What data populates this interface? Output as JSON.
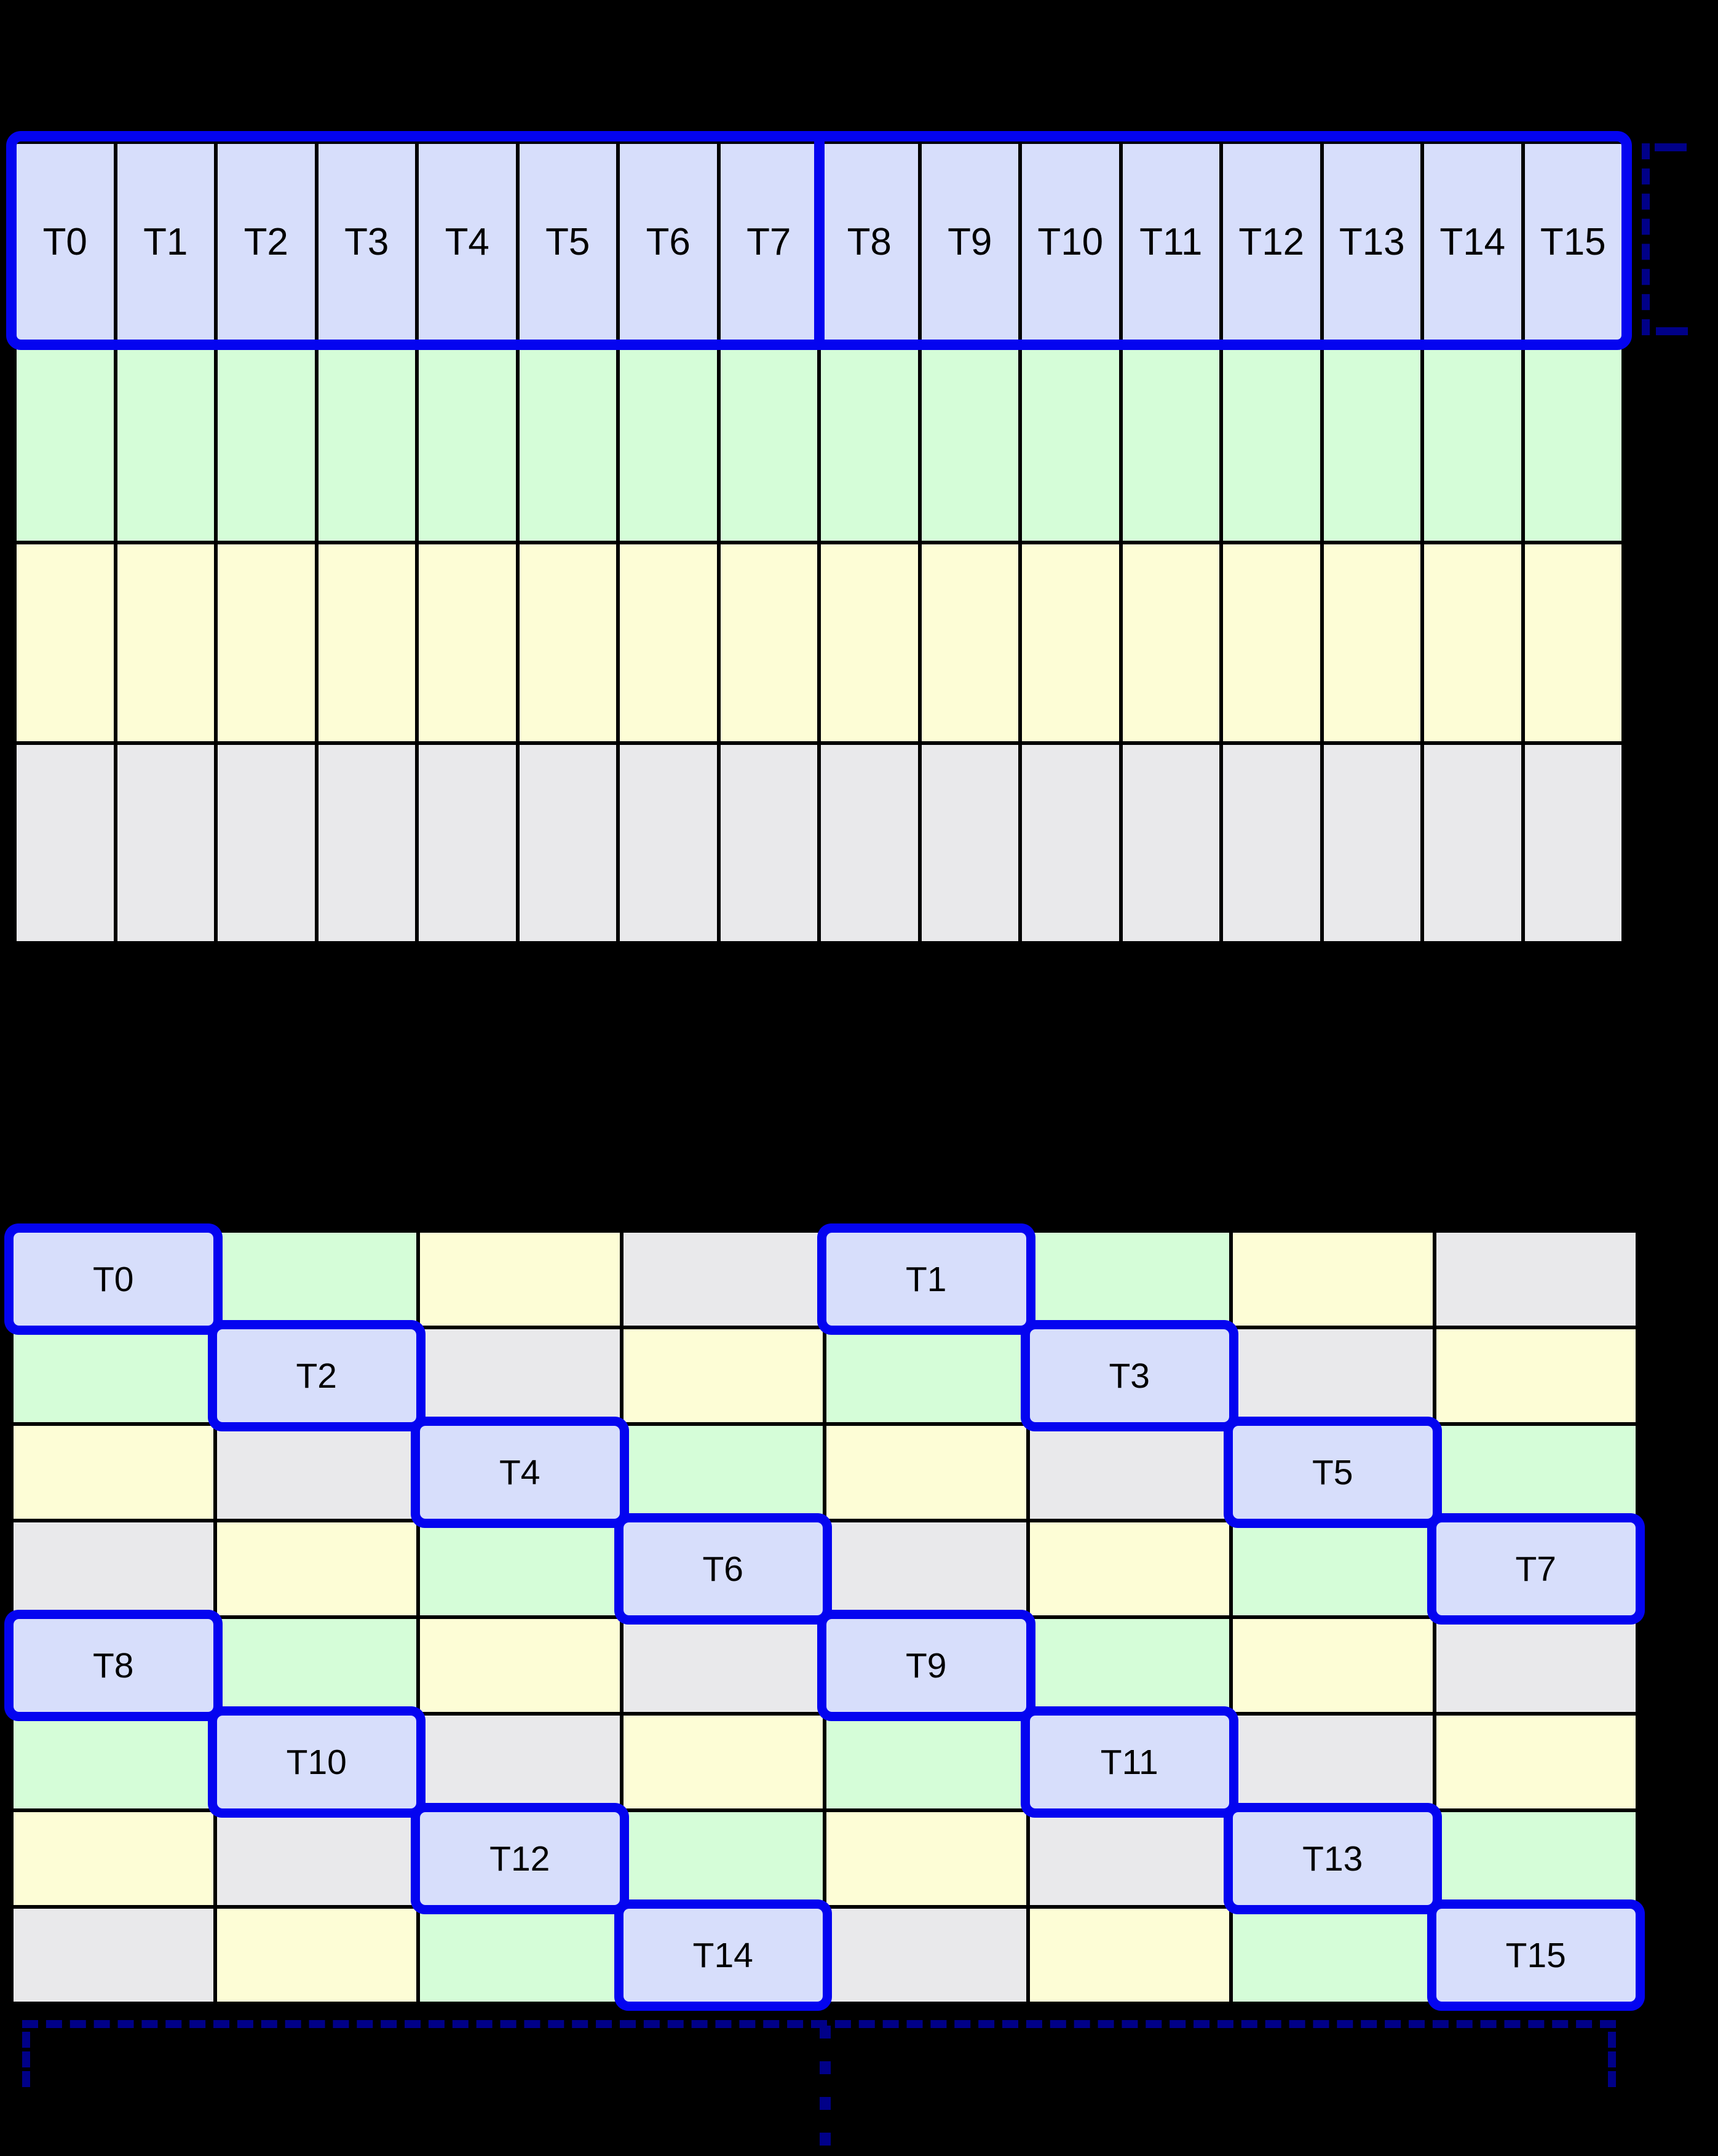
{
  "palette": {
    "cell_blue": "#d7defb",
    "cell_green": "#d5fdd8",
    "cell_yellow": "#fdfdd6",
    "cell_gray": "#e9e9eb",
    "outline_blue": "#0404f0",
    "bracket_navy": "#000088",
    "grid_line": "#000000",
    "label_color": "#000000",
    "background": "#000000"
  },
  "top_grid": {
    "thread_labels": [
      "T0",
      "T1",
      "T2",
      "T3",
      "T4",
      "T5",
      "T6",
      "T7",
      "T8",
      "T9",
      "T10",
      "T11",
      "T12",
      "T13",
      "T14",
      "T15"
    ],
    "row_colors": [
      "cell_blue",
      "cell_green",
      "cell_yellow",
      "cell_gray"
    ],
    "columns": 16,
    "divider_between_columns": [
      8,
      9
    ]
  },
  "bottom_grid": {
    "rows": [
      [
        {
          "color": "blue",
          "label": "T0"
        },
        {
          "color": "green"
        },
        {
          "color": "yellow"
        },
        {
          "color": "gray"
        },
        {
          "color": "blue",
          "label": "T1"
        },
        {
          "color": "green"
        },
        {
          "color": "yellow"
        },
        {
          "color": "gray"
        }
      ],
      [
        {
          "color": "green"
        },
        {
          "color": "blue",
          "label": "T2"
        },
        {
          "color": "gray"
        },
        {
          "color": "yellow"
        },
        {
          "color": "green"
        },
        {
          "color": "blue",
          "label": "T3"
        },
        {
          "color": "gray"
        },
        {
          "color": "yellow"
        }
      ],
      [
        {
          "color": "yellow"
        },
        {
          "color": "gray"
        },
        {
          "color": "blue",
          "label": "T4"
        },
        {
          "color": "green"
        },
        {
          "color": "yellow"
        },
        {
          "color": "gray"
        },
        {
          "color": "blue",
          "label": "T5"
        },
        {
          "color": "green"
        }
      ],
      [
        {
          "color": "gray"
        },
        {
          "color": "yellow"
        },
        {
          "color": "green"
        },
        {
          "color": "blue",
          "label": "T6"
        },
        {
          "color": "gray"
        },
        {
          "color": "yellow"
        },
        {
          "color": "green"
        },
        {
          "color": "blue",
          "label": "T7"
        }
      ],
      [
        {
          "color": "blue",
          "label": "T8"
        },
        {
          "color": "green"
        },
        {
          "color": "yellow"
        },
        {
          "color": "gray"
        },
        {
          "color": "blue",
          "label": "T9"
        },
        {
          "color": "green"
        },
        {
          "color": "yellow"
        },
        {
          "color": "gray"
        }
      ],
      [
        {
          "color": "green"
        },
        {
          "color": "blue",
          "label": "T10"
        },
        {
          "color": "gray"
        },
        {
          "color": "yellow"
        },
        {
          "color": "green"
        },
        {
          "color": "blue",
          "label": "T11"
        },
        {
          "color": "gray"
        },
        {
          "color": "yellow"
        }
      ],
      [
        {
          "color": "yellow"
        },
        {
          "color": "gray"
        },
        {
          "color": "blue",
          "label": "T12"
        },
        {
          "color": "green"
        },
        {
          "color": "yellow"
        },
        {
          "color": "gray"
        },
        {
          "color": "blue",
          "label": "T13"
        },
        {
          "color": "green"
        }
      ],
      [
        {
          "color": "gray"
        },
        {
          "color": "yellow"
        },
        {
          "color": "green"
        },
        {
          "color": "blue",
          "label": "T14"
        },
        {
          "color": "gray"
        },
        {
          "color": "yellow"
        },
        {
          "color": "green"
        },
        {
          "color": "blue",
          "label": "T15"
        }
      ]
    ]
  },
  "annotations": {
    "right_bracket_style": "dashed",
    "bottom_bracket_style": "dashed",
    "continuation_dots": 4
  }
}
